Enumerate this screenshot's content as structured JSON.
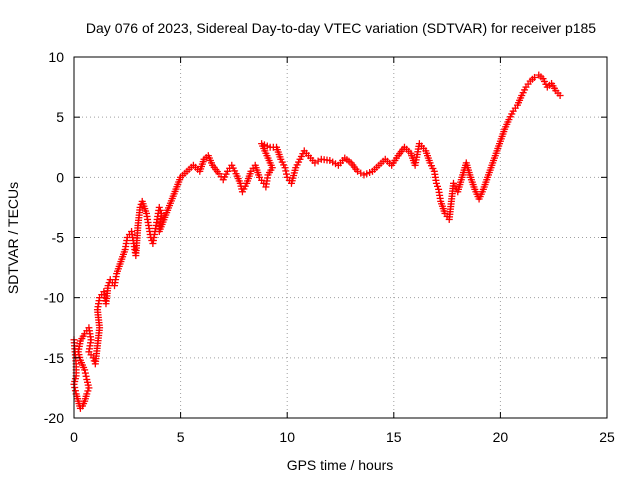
{
  "chart_data": {
    "type": "scatter",
    "title": "Day 076 of 2023, Sidereal Day-to-day VTEC variation (SDTVAR) for receiver p185",
    "xlabel": "GPS time / hours",
    "ylabel": "SDTVAR / TECUs",
    "xlim": [
      0,
      25
    ],
    "ylim": [
      -20,
      10
    ],
    "grid": true,
    "legend": "none",
    "marker": "+",
    "x_ticks": [
      0,
      5,
      10,
      15,
      20,
      25
    ],
    "y_ticks": [
      -20,
      -15,
      -10,
      -5,
      0,
      5,
      10
    ],
    "x_tick_labels": [
      "0",
      "5",
      "10",
      "15",
      "20",
      "25"
    ],
    "y_tick_labels": [
      "-20",
      "-15",
      "-10",
      "-5",
      "0",
      "5",
      "10"
    ],
    "series": [
      {
        "name": "SDTVAR",
        "color": "#ff0000",
        "points": [
          [
            0.0,
            -13.5
          ],
          [
            0.05,
            -14.5
          ],
          [
            0.1,
            -15.5
          ],
          [
            0.1,
            -16.5
          ],
          [
            0.0,
            -17.2
          ],
          [
            0.1,
            -18.0
          ],
          [
            0.2,
            -18.6
          ],
          [
            0.3,
            -19.2
          ],
          [
            0.4,
            -19.0
          ],
          [
            0.5,
            -18.6
          ],
          [
            0.6,
            -18.0
          ],
          [
            0.7,
            -17.5
          ],
          [
            0.6,
            -16.8
          ],
          [
            0.5,
            -16.0
          ],
          [
            0.3,
            -15.2
          ],
          [
            0.2,
            -14.5
          ],
          [
            0.3,
            -13.6
          ],
          [
            0.5,
            -13.0
          ],
          [
            0.7,
            -12.5
          ],
          [
            0.8,
            -13.5
          ],
          [
            0.7,
            -14.5
          ],
          [
            0.9,
            -15.0
          ],
          [
            1.0,
            -15.5
          ],
          [
            1.1,
            -14.0
          ],
          [
            1.2,
            -12.5
          ],
          [
            1.1,
            -11.0
          ],
          [
            1.2,
            -10.0
          ],
          [
            1.4,
            -9.5
          ],
          [
            1.5,
            -10.5
          ],
          [
            1.6,
            -9.0
          ],
          [
            1.7,
            -8.5
          ],
          [
            1.9,
            -9.0
          ],
          [
            2.0,
            -8.0
          ],
          [
            2.2,
            -7.0
          ],
          [
            2.4,
            -6.0
          ],
          [
            2.5,
            -5.0
          ],
          [
            2.7,
            -4.5
          ],
          [
            2.8,
            -5.5
          ],
          [
            2.9,
            -6.5
          ],
          [
            3.0,
            -4.0
          ],
          [
            3.1,
            -2.5
          ],
          [
            3.2,
            -2.0
          ],
          [
            3.4,
            -3.0
          ],
          [
            3.5,
            -4.0
          ],
          [
            3.6,
            -5.0
          ],
          [
            3.7,
            -5.5
          ],
          [
            3.8,
            -4.5
          ],
          [
            3.9,
            -3.5
          ],
          [
            4.0,
            -2.5
          ],
          [
            4.1,
            -3.0
          ],
          [
            4.0,
            -4.5
          ],
          [
            5.0,
            0.0
          ],
          [
            5.3,
            0.5
          ],
          [
            5.6,
            1.0
          ],
          [
            5.9,
            0.5
          ],
          [
            6.1,
            1.5
          ],
          [
            6.3,
            1.8
          ],
          [
            6.5,
            1.0
          ],
          [
            6.8,
            0.3
          ],
          [
            7.0,
            -0.2
          ],
          [
            7.2,
            0.5
          ],
          [
            7.4,
            1.0
          ],
          [
            7.6,
            0.3
          ],
          [
            7.8,
            -0.5
          ],
          [
            7.9,
            -1.2
          ],
          [
            8.1,
            -0.5
          ],
          [
            8.3,
            0.5
          ],
          [
            8.5,
            1.0
          ],
          [
            8.7,
            0.0
          ],
          [
            8.9,
            -0.5
          ],
          [
            9.0,
            -0.8
          ],
          [
            9.1,
            0.2
          ],
          [
            9.3,
            0.8
          ],
          [
            8.8,
            2.8
          ],
          [
            9.2,
            2.5
          ],
          [
            9.5,
            2.5
          ],
          [
            9.7,
            1.5
          ],
          [
            9.9,
            0.8
          ],
          [
            10.0,
            0.0
          ],
          [
            10.2,
            -0.5
          ],
          [
            10.4,
            0.8
          ],
          [
            10.6,
            1.5
          ],
          [
            10.8,
            2.2
          ],
          [
            11.0,
            1.8
          ],
          [
            11.3,
            1.2
          ],
          [
            11.6,
            1.5
          ],
          [
            12.0,
            1.4
          ],
          [
            12.4,
            1.0
          ],
          [
            12.7,
            1.6
          ],
          [
            13.0,
            1.2
          ],
          [
            13.3,
            0.5
          ],
          [
            13.6,
            0.2
          ],
          [
            14.0,
            0.5
          ],
          [
            14.3,
            1.0
          ],
          [
            14.6,
            1.5
          ],
          [
            14.9,
            1.0
          ],
          [
            15.2,
            1.8
          ],
          [
            15.5,
            2.5
          ],
          [
            15.8,
            2.0
          ],
          [
            16.0,
            1.0
          ],
          [
            16.2,
            2.8
          ],
          [
            16.5,
            2.2
          ],
          [
            16.7,
            1.2
          ],
          [
            16.9,
            0.5
          ],
          [
            17.0,
            -0.5
          ],
          [
            17.1,
            -1.0
          ],
          [
            17.2,
            -2.0
          ],
          [
            17.4,
            -3.0
          ],
          [
            17.6,
            -3.5
          ],
          [
            17.8,
            -0.5
          ],
          [
            18.0,
            -1.2
          ],
          [
            18.2,
            0.0
          ],
          [
            18.4,
            1.2
          ],
          [
            18.6,
            0.0
          ],
          [
            18.8,
            -1.0
          ],
          [
            19.0,
            -1.8
          ],
          [
            19.2,
            -1.0
          ],
          [
            19.4,
            0.0
          ],
          [
            19.6,
            1.0
          ],
          [
            19.8,
            2.0
          ],
          [
            20.0,
            3.0
          ],
          [
            20.2,
            4.0
          ],
          [
            20.4,
            4.8
          ],
          [
            20.6,
            5.5
          ],
          [
            20.8,
            6.0
          ],
          [
            21.0,
            6.8
          ],
          [
            21.2,
            7.5
          ],
          [
            21.4,
            8.0
          ],
          [
            21.6,
            8.3
          ],
          [
            21.8,
            8.5
          ],
          [
            22.0,
            8.2
          ],
          [
            22.2,
            7.5
          ],
          [
            22.4,
            7.8
          ],
          [
            22.6,
            7.2
          ],
          [
            22.8,
            6.8
          ]
        ]
      }
    ]
  }
}
